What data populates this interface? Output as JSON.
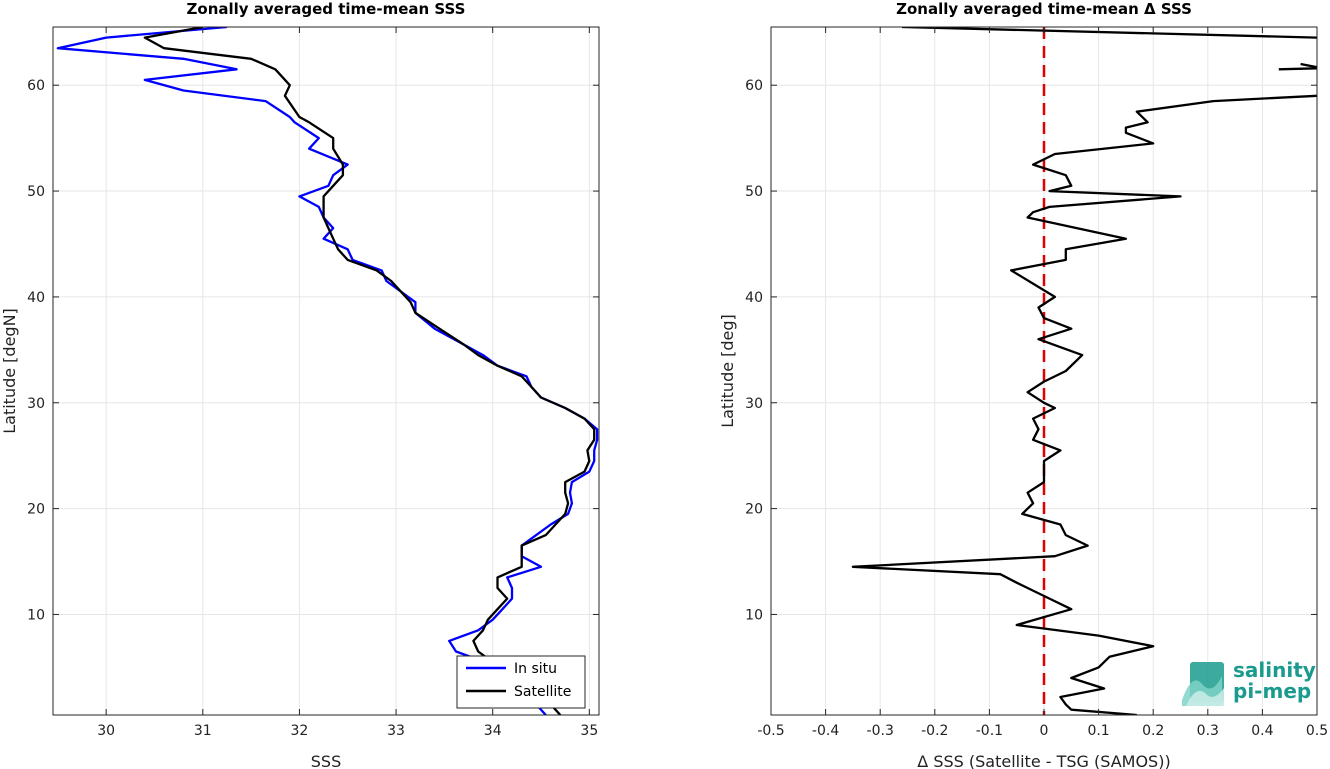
{
  "chart_data": [
    {
      "type": "line",
      "title": "Zonally averaged time-mean SSS",
      "xlabel": "SSS",
      "ylabel": "Latitude [degN]",
      "xlim": [
        29.45,
        35.1
      ],
      "ylim": [
        0.5,
        65.5
      ],
      "xticks": [
        30,
        31,
        32,
        33,
        34,
        35
      ],
      "yticks": [
        10,
        20,
        30,
        40,
        50,
        60
      ],
      "grid": true,
      "legend_position": "bottom-right",
      "series": [
        {
          "name": "In situ",
          "color": "#0000ff",
          "points": [
            [
              34.55,
              0.5
            ],
            [
              34.45,
              1.5
            ],
            [
              34.35,
              2.5
            ],
            [
              34.2,
              3.5
            ],
            [
              34.05,
              4.5
            ],
            [
              33.92,
              5.5
            ],
            [
              33.62,
              6.5
            ],
            [
              33.55,
              7.5
            ],
            [
              33.85,
              8.5
            ],
            [
              34.0,
              9.5
            ],
            [
              34.1,
              10.5
            ],
            [
              34.2,
              11.5
            ],
            [
              34.2,
              12.5
            ],
            [
              34.15,
              13.5
            ],
            [
              34.5,
              14.5
            ],
            [
              34.3,
              15.5
            ],
            [
              34.3,
              16.5
            ],
            [
              34.45,
              17.5
            ],
            [
              34.6,
              18.5
            ],
            [
              34.78,
              19.5
            ],
            [
              34.82,
              20.5
            ],
            [
              34.8,
              21.5
            ],
            [
              34.82,
              22.5
            ],
            [
              35.0,
              23.5
            ],
            [
              35.05,
              24.5
            ],
            [
              35.05,
              25.5
            ],
            [
              35.08,
              26.5
            ],
            [
              35.08,
              27.5
            ],
            [
              34.95,
              28.5
            ],
            [
              34.75,
              29.5
            ],
            [
              34.5,
              30.5
            ],
            [
              34.4,
              31.5
            ],
            [
              34.35,
              32.5
            ],
            [
              34.05,
              33.5
            ],
            [
              33.9,
              34.5
            ],
            [
              33.7,
              35.5
            ],
            [
              33.4,
              37.0
            ],
            [
              33.2,
              38.5
            ],
            [
              33.2,
              39.5
            ],
            [
              32.9,
              41.5
            ],
            [
              32.85,
              42.5
            ],
            [
              32.55,
              43.5
            ],
            [
              32.5,
              44.5
            ],
            [
              32.25,
              45.5
            ],
            [
              32.35,
              46.5
            ],
            [
              32.25,
              47.5
            ],
            [
              32.2,
              48.5
            ],
            [
              32.0,
              49.5
            ],
            [
              32.3,
              50.5
            ],
            [
              32.35,
              51.5
            ],
            [
              32.5,
              52.5
            ],
            [
              32.1,
              54.0
            ],
            [
              32.2,
              55.0
            ],
            [
              31.95,
              56.5
            ],
            [
              31.9,
              57.0
            ],
            [
              31.65,
              58.5
            ],
            [
              30.8,
              59.5
            ],
            [
              30.4,
              60.5
            ],
            [
              31.35,
              61.5
            ],
            [
              30.8,
              62.5
            ],
            [
              29.5,
              63.5
            ],
            [
              30.0,
              64.5
            ],
            [
              31.25,
              65.5
            ]
          ]
        },
        {
          "name": "Satellite",
          "color": "#000000",
          "points": [
            [
              34.7,
              0.5
            ],
            [
              34.6,
              1.5
            ],
            [
              34.45,
              2.5
            ],
            [
              34.3,
              3.5
            ],
            [
              34.15,
              4.5
            ],
            [
              34.0,
              5.5
            ],
            [
              33.85,
              6.5
            ],
            [
              33.8,
              7.5
            ],
            [
              33.9,
              8.5
            ],
            [
              33.95,
              9.5
            ],
            [
              34.05,
              10.5
            ],
            [
              34.15,
              11.5
            ],
            [
              34.05,
              12.5
            ],
            [
              34.05,
              13.5
            ],
            [
              34.3,
              14.5
            ],
            [
              34.3,
              15.5
            ],
            [
              34.3,
              16.5
            ],
            [
              34.55,
              17.5
            ],
            [
              34.65,
              18.5
            ],
            [
              34.75,
              19.5
            ],
            [
              34.78,
              20.5
            ],
            [
              34.75,
              21.5
            ],
            [
              34.75,
              22.5
            ],
            [
              34.95,
              23.5
            ],
            [
              35.0,
              24.5
            ],
            [
              34.98,
              25.5
            ],
            [
              35.05,
              26.5
            ],
            [
              35.05,
              27.5
            ],
            [
              34.95,
              28.5
            ],
            [
              34.75,
              29.5
            ],
            [
              34.5,
              30.5
            ],
            [
              34.4,
              31.5
            ],
            [
              34.3,
              32.5
            ],
            [
              34.05,
              33.5
            ],
            [
              33.85,
              34.5
            ],
            [
              33.7,
              35.5
            ],
            [
              33.45,
              37.0
            ],
            [
              33.2,
              38.5
            ],
            [
              33.15,
              39.5
            ],
            [
              32.95,
              41.5
            ],
            [
              32.8,
              42.5
            ],
            [
              32.5,
              43.5
            ],
            [
              32.4,
              44.5
            ],
            [
              32.35,
              45.5
            ],
            [
              32.3,
              46.5
            ],
            [
              32.25,
              47.5
            ],
            [
              32.25,
              48.5
            ],
            [
              32.25,
              49.5
            ],
            [
              32.35,
              50.5
            ],
            [
              32.45,
              51.5
            ],
            [
              32.45,
              52.5
            ],
            [
              32.35,
              54.0
            ],
            [
              32.35,
              55.0
            ],
            [
              32.1,
              56.5
            ],
            [
              32.0,
              57.0
            ],
            [
              31.85,
              59.0
            ],
            [
              31.9,
              60.0
            ],
            [
              31.75,
              61.5
            ],
            [
              31.5,
              62.5
            ],
            [
              30.6,
              63.5
            ],
            [
              30.4,
              64.5
            ],
            [
              31.0,
              65.5
            ]
          ]
        }
      ]
    },
    {
      "type": "line",
      "title": "Zonally averaged time-mean Δ SSS",
      "xlabel": "Δ SSS (Satellite - TSG (SAMOS))",
      "ylabel": "Latitude [deg]",
      "xlim": [
        -0.5,
        0.5
      ],
      "ylim": [
        0.5,
        65.5
      ],
      "xticks": [
        -0.5,
        -0.4,
        -0.3,
        -0.2,
        -0.1,
        0,
        0.1,
        0.2,
        0.3,
        0.4,
        0.5
      ],
      "xtick_labels": [
        "-0.5",
        "-0.4",
        "-0.3",
        "-0.2",
        "-0.1",
        "0",
        "0.1",
        "0.2",
        "0.3",
        "0.4",
        "0.5"
      ],
      "yticks": [
        10,
        20,
        30,
        40,
        50,
        60
      ],
      "grid": true,
      "reference_line": {
        "x": 0,
        "color": "#e00000",
        "style": "dashed"
      },
      "series": [
        {
          "name": "",
          "color": "#000000",
          "points": [
            [
              0.17,
              0.5
            ],
            [
              0.05,
              1.0
            ],
            [
              0.04,
              1.5
            ],
            [
              0.03,
              2.2
            ],
            [
              0.11,
              3.0
            ],
            [
              0.05,
              4.0
            ],
            [
              0.1,
              5.0
            ],
            [
              0.12,
              6.0
            ],
            [
              0.2,
              7.0
            ],
            [
              0.1,
              8.0
            ],
            [
              -0.05,
              9.0
            ],
            [
              0.05,
              10.5
            ],
            [
              0.01,
              11.5
            ],
            [
              -0.03,
              12.5
            ],
            [
              -0.05,
              13.0
            ],
            [
              -0.08,
              13.8
            ],
            [
              -0.35,
              14.5
            ],
            [
              0.02,
              15.5
            ],
            [
              0.08,
              16.5
            ],
            [
              0.04,
              17.5
            ],
            [
              0.03,
              18.5
            ],
            [
              -0.04,
              19.5
            ],
            [
              -0.02,
              20.5
            ],
            [
              -0.03,
              21.5
            ],
            [
              0.0,
              22.5
            ],
            [
              0.0,
              23.5
            ],
            [
              0.0,
              24.5
            ],
            [
              0.03,
              25.5
            ],
            [
              -0.02,
              26.5
            ],
            [
              -0.01,
              27.5
            ],
            [
              -0.02,
              28.5
            ],
            [
              0.02,
              29.5
            ],
            [
              0.0,
              30.0
            ],
            [
              -0.03,
              31.0
            ],
            [
              0.0,
              32.0
            ],
            [
              0.04,
              33.0
            ],
            [
              0.07,
              34.5
            ],
            [
              -0.01,
              36.0
            ],
            [
              0.05,
              37.0
            ],
            [
              0.0,
              38.0
            ],
            [
              -0.01,
              39.0
            ],
            [
              0.02,
              40.0
            ],
            [
              -0.06,
              42.5
            ],
            [
              0.04,
              43.5
            ],
            [
              0.04,
              44.5
            ],
            [
              0.15,
              45.5
            ],
            [
              -0.03,
              47.5
            ],
            [
              -0.02,
              48.0
            ],
            [
              0.01,
              48.5
            ],
            [
              0.25,
              49.5
            ],
            [
              0.01,
              50.0
            ],
            [
              0.05,
              50.5
            ],
            [
              0.04,
              51.5
            ],
            [
              -0.02,
              52.5
            ],
            [
              0.02,
              53.5
            ],
            [
              0.2,
              54.5
            ],
            [
              0.15,
              55.5
            ],
            [
              0.15,
              56.0
            ],
            [
              0.19,
              56.5
            ],
            [
              0.17,
              57.5
            ],
            [
              0.31,
              58.5
            ],
            [
              0.5,
              59.0
            ]
          ]
        },
        {
          "name": "",
          "color": "#000000",
          "points": [
            [
              0.43,
              61.5
            ],
            [
              0.5,
              61.6
            ]
          ]
        },
        {
          "name": "",
          "color": "#000000",
          "points": [
            [
              0.5,
              61.7
            ],
            [
              0.47,
              62.0
            ]
          ]
        },
        {
          "name": "",
          "color": "#000000",
          "points": [
            [
              0.5,
              64.5
            ],
            [
              -0.26,
              65.5
            ]
          ]
        }
      ]
    }
  ],
  "logo": {
    "line1": "salinity",
    "line2": "pi-mep",
    "color": "#1a9b8e"
  }
}
